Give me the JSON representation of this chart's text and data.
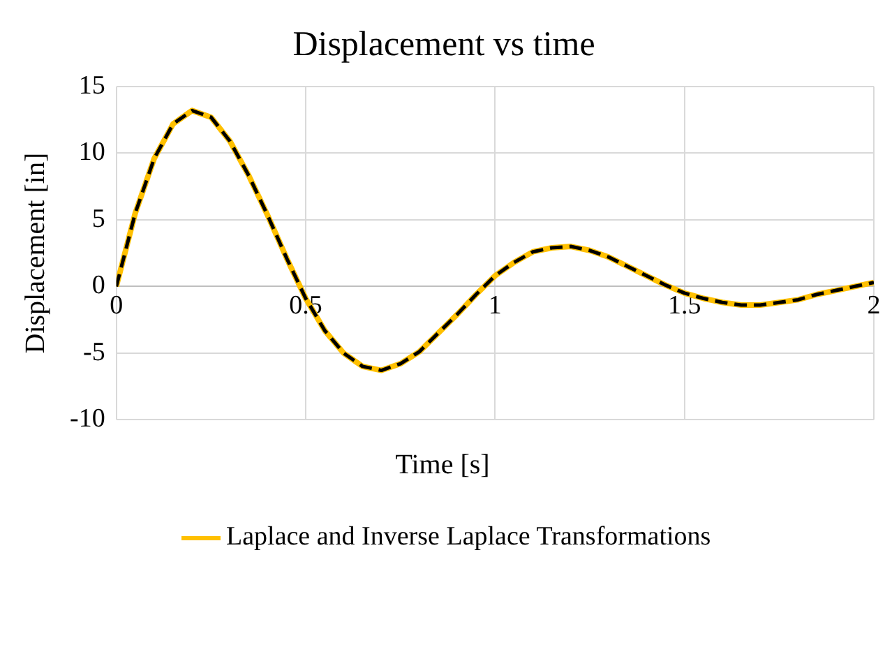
{
  "chart_data": {
    "type": "line",
    "title": "Displacement vs time",
    "xlabel": "Time [s]",
    "ylabel": "Displacement [in]",
    "x": [
      0,
      0.05,
      0.1,
      0.15,
      0.2,
      0.25,
      0.3,
      0.35,
      0.4,
      0.45,
      0.5,
      0.55,
      0.6,
      0.65,
      0.7,
      0.75,
      0.8,
      0.85,
      0.9,
      0.95,
      1,
      1.05,
      1.1,
      1.15,
      1.2,
      1.25,
      1.3,
      1.35,
      1.4,
      1.45,
      1.5,
      1.55,
      1.6,
      1.65,
      1.7,
      1.75,
      1.8,
      1.85,
      1.9,
      1.95,
      2
    ],
    "series": [
      {
        "name": "Laplace and Inverse Laplace Transformations",
        "color": "#ffc000",
        "line_style": "solid",
        "values": [
          0,
          5.5,
          9.6,
          12.2,
          13.2,
          12.7,
          10.9,
          8.3,
          5.3,
          2.1,
          -0.9,
          -3.3,
          -5.0,
          -6.0,
          -6.3,
          -5.8,
          -4.9,
          -3.5,
          -2.1,
          -0.6,
          0.8,
          1.8,
          2.6,
          2.9,
          3.0,
          2.7,
          2.2,
          1.5,
          0.8,
          0.1,
          -0.5,
          -0.9,
          -1.2,
          -1.4,
          -1.4,
          -1.2,
          -1.0,
          -0.6,
          -0.3,
          0.0,
          0.3
        ]
      },
      {
        "color": "#000000",
        "line_style": "dashed",
        "values": [
          0,
          5.5,
          9.6,
          12.2,
          13.2,
          12.7,
          10.9,
          8.3,
          5.3,
          2.1,
          -0.9,
          -3.3,
          -5.0,
          -6.0,
          -6.3,
          -5.8,
          -4.9,
          -3.5,
          -2.1,
          -0.6,
          0.8,
          1.8,
          2.6,
          2.9,
          3.0,
          2.7,
          2.2,
          1.5,
          0.8,
          0.1,
          -0.5,
          -0.9,
          -1.2,
          -1.4,
          -1.4,
          -1.2,
          -1.0,
          -0.6,
          -0.3,
          0.0,
          0.3
        ]
      }
    ],
    "xlim": [
      0,
      2
    ],
    "xticks": [
      0,
      0.5,
      1,
      1.5,
      2
    ],
    "ylim": [
      -10,
      15
    ],
    "yticks": [
      -10,
      -5,
      0,
      5,
      10,
      15
    ],
    "grid": true,
    "legend": "bottom",
    "marker": "none"
  }
}
